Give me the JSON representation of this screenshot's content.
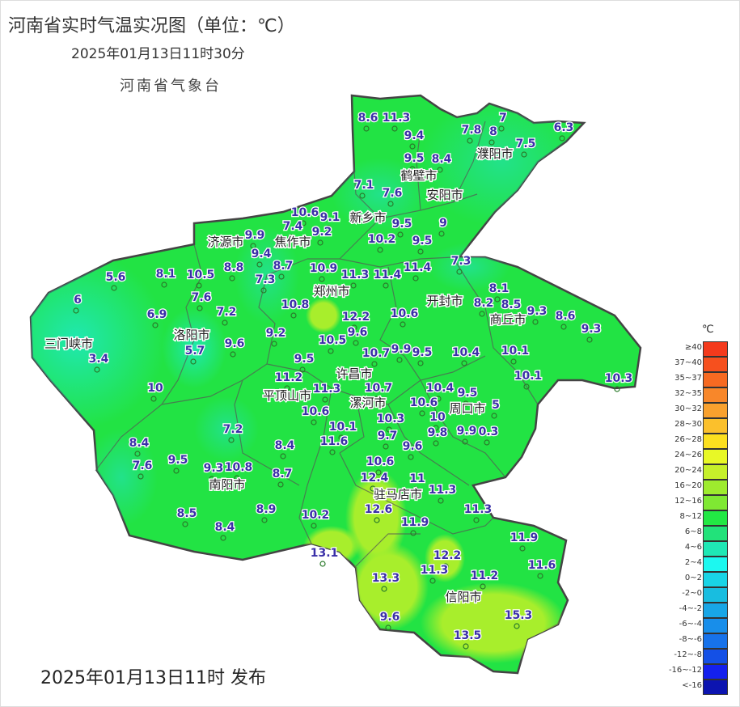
{
  "header": {
    "title": "河南省实时气温实况图（单位：℃）",
    "datetime": "2025年01月13日11时30分",
    "agency": "河南省气象台"
  },
  "footer": {
    "publish": "2025年01月13日11时 发布"
  },
  "legend": {
    "unit": "℃",
    "items": [
      {
        "label": "≥40",
        "color": "#f43a1c"
      },
      {
        "label": "37~40",
        "color": "#f6501e"
      },
      {
        "label": "35~37",
        "color": "#f76a22"
      },
      {
        "label": "32~35",
        "color": "#f8872a"
      },
      {
        "label": "30~32",
        "color": "#f9a12e"
      },
      {
        "label": "28~30",
        "color": "#fbc02c"
      },
      {
        "label": "26~28",
        "color": "#fce01f"
      },
      {
        "label": "24~26",
        "color": "#e8f826"
      },
      {
        "label": "20~24",
        "color": "#c6f02a"
      },
      {
        "label": "16~20",
        "color": "#9eeb2e"
      },
      {
        "label": "12~16",
        "color": "#7fe833"
      },
      {
        "label": "8~12",
        "color": "#22e844"
      },
      {
        "label": "6~8",
        "color": "#22e27a"
      },
      {
        "label": "4~6",
        "color": "#1fe8b5"
      },
      {
        "label": "2~4",
        "color": "#1cf8f0"
      },
      {
        "label": "0~2",
        "color": "#19d4e6"
      },
      {
        "label": "-2~0",
        "color": "#18bde0"
      },
      {
        "label": "-4~-2",
        "color": "#18a6e6"
      },
      {
        "label": "-6~-4",
        "color": "#188eea"
      },
      {
        "label": "-8~-6",
        "color": "#1772ea"
      },
      {
        "label": "-12~-8",
        "color": "#1450e6"
      },
      {
        "label": "-16~-12",
        "color": "#1420ee"
      },
      {
        "label": "<-16",
        "color": "#0c14b0"
      }
    ]
  },
  "cities": [
    "濮阳市",
    "鹤壁市",
    "安阳市",
    "新乡市",
    "济源市",
    "焦作市",
    "郑州市",
    "开封市",
    "商丘市",
    "三门峡市",
    "洛阳市",
    "许昌市",
    "平顶山市",
    "漯河市",
    "周口市",
    "南阳市",
    "驻马店市",
    "信阳市"
  ],
  "stations": [
    "8.6",
    "11.3",
    "9.4",
    "7.8",
    "8",
    "7",
    "7.5",
    "6.3",
    "9.5",
    "8.4",
    "7.1",
    "7.6",
    "10.6",
    "9.1",
    "9.2",
    "7.4",
    "9.9",
    "9.5",
    "9",
    "10.2",
    "9.5",
    "9.4",
    "8.8",
    "8.7",
    "7.3",
    "10.5",
    "8.1",
    "5.6",
    "6",
    "10.9",
    "11.3",
    "11.4",
    "11.4",
    "7.3",
    "8.1",
    "8.2",
    "8.5",
    "9.3",
    "8.6",
    "9.3",
    "7.6",
    "6.9",
    "7.2",
    "10.8",
    "12.2",
    "10.6",
    "9.6",
    "9.2",
    "9.6",
    "5.7",
    "3.4",
    "10.5",
    "10.7",
    "9.9",
    "9.5",
    "10.4",
    "10.1",
    "9.5",
    "11.2",
    "11.3",
    "10.7",
    "10.1",
    "10.3",
    "10",
    "10.4",
    "10.6",
    "9.5",
    "10.3",
    "10.6",
    "10",
    "5",
    "9.8",
    "10.1",
    "9.9",
    "0.3",
    "8.4",
    "7.2",
    "11.6",
    "9.7",
    "9.6",
    "8.4",
    "7.6",
    "9.5",
    "9.3",
    "10.8",
    "10.6",
    "8.7",
    "12.4",
    "11",
    "11.3",
    "12.6",
    "8.5",
    "8.9",
    "10.2",
    "11.3",
    "11.9",
    "11.9",
    "8.4",
    "13.1",
    "12.2",
    "11.6",
    "11.3",
    "11.2",
    "13.3",
    "15.3",
    "9.6",
    "13.5"
  ],
  "colors": {
    "base": "#22e344",
    "cool": "#1fe29a",
    "warm": "#a8ee2c",
    "border": "#444444",
    "value_text": "#3a2fa8"
  }
}
